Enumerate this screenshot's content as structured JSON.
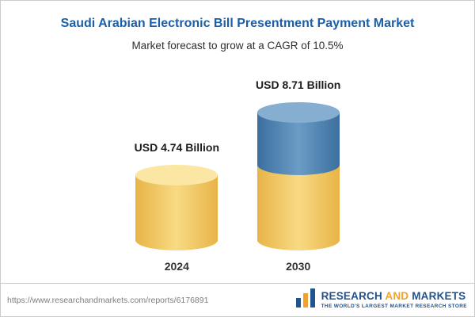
{
  "header": {
    "title": "Saudi Arabian Electronic Bill Presentment Payment Market",
    "subtitle": "Market forecast to grow at a CAGR of 10.5%"
  },
  "chart_data": {
    "type": "bar",
    "style": "3d-cylinder",
    "unit": "USD Billion",
    "title": "Saudi Arabian Electronic Bill Presentment Payment Market",
    "subtitle": "Market forecast to grow at a CAGR of 10.5%",
    "categories": [
      "2024",
      "2030"
    ],
    "values": [
      4.74,
      8.71
    ],
    "cagr_percent": 10.5,
    "ylim": [
      0,
      9
    ],
    "grid": false,
    "legend": "none",
    "bars": [
      {
        "category": "2024",
        "value": 4.74,
        "label": "USD 4.74 Billion",
        "segments": [
          {
            "value": 4.74,
            "color": "yellow"
          }
        ]
      },
      {
        "category": "2030",
        "value": 8.71,
        "label": "USD 8.71 Billion",
        "segments": [
          {
            "value": 4.74,
            "color": "yellow"
          },
          {
            "value": 3.97,
            "color": "blue"
          }
        ]
      }
    ],
    "colors": {
      "yellow": "#f2c94c",
      "blue": "#4f81ab"
    }
  },
  "footer": {
    "url": "https://www.researchandmarkets.com/reports/6176891",
    "logo": {
      "word1": "RESEARCH",
      "word2": "AND",
      "word3": "MARKETS",
      "tagline": "THE WORLD'S LARGEST MARKET RESEARCH STORE"
    }
  },
  "colors": {
    "title_blue": "#1a5fa8",
    "logo_blue": "#21538f",
    "logo_orange": "#f0a22e"
  }
}
